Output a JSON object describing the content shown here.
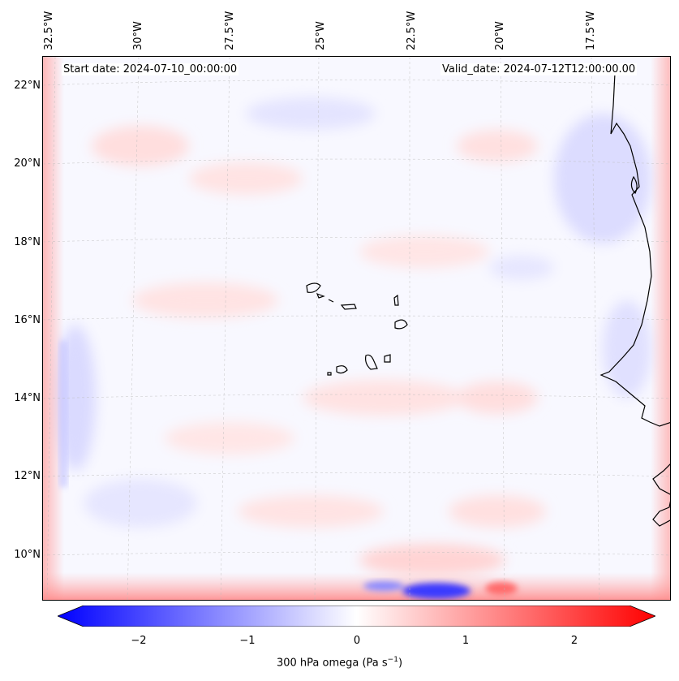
{
  "map": {
    "lon_labels": [
      "32.5°W",
      "30°W",
      "27.5°W",
      "25°W",
      "22.5°W",
      "20°W",
      "17.5°W"
    ],
    "lat_labels": [
      "22°N",
      "20°N",
      "18°N",
      "16°N",
      "14°N",
      "12°N",
      "10°N"
    ],
    "start_date": "Start date: 2024-07-10_00:00:00",
    "valid_date": "Valid_date: 2024-07-12T12:00:00.00"
  },
  "colorbar": {
    "label": "300 hPa omega (Pa s",
    "label_sup": "−1",
    "label_end": ")",
    "ticks": [
      "−2",
      "−1",
      "0",
      "1",
      "2"
    ],
    "colormap": "bwr",
    "low_color": "#0000ff",
    "mid_color": "#ffffff",
    "high_color": "#ff0000"
  }
}
